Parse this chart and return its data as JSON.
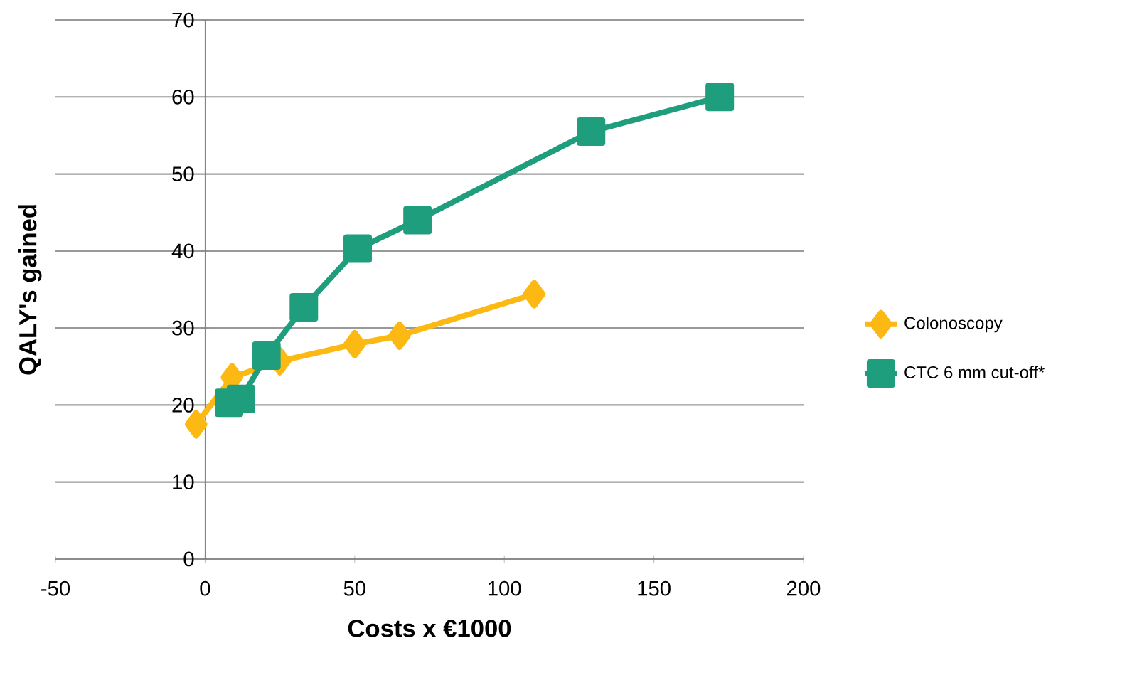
{
  "chart_data": {
    "type": "line",
    "xlabel": "Costs x €1000",
    "ylabel": "QALY's gained",
    "xlim": [
      -50,
      200
    ],
    "xticks": [
      -50,
      0,
      50,
      100,
      150,
      200
    ],
    "ylim": [
      0,
      70
    ],
    "yticks": [
      0,
      10,
      20,
      30,
      40,
      50,
      60,
      70
    ],
    "grid": "y",
    "legend": "right",
    "line_style": "solid",
    "series": [
      {
        "name": "Colonoscopy",
        "color": "#fdb913",
        "marker": "diamond",
        "x": [
          -3,
          9,
          25,
          50,
          65,
          110
        ],
        "values": [
          17.5,
          23.6,
          25.7,
          27.9,
          29.0,
          34.4
        ]
      },
      {
        "name": "CTC 6 mm cut-off*",
        "color": "#1f9e7e",
        "marker": "square",
        "x": [
          8,
          12,
          20.5,
          33,
          51,
          71,
          129,
          172
        ],
        "values": [
          20.3,
          20.8,
          26.4,
          32.7,
          40.3,
          44.0,
          55.5,
          60.0
        ]
      }
    ]
  }
}
